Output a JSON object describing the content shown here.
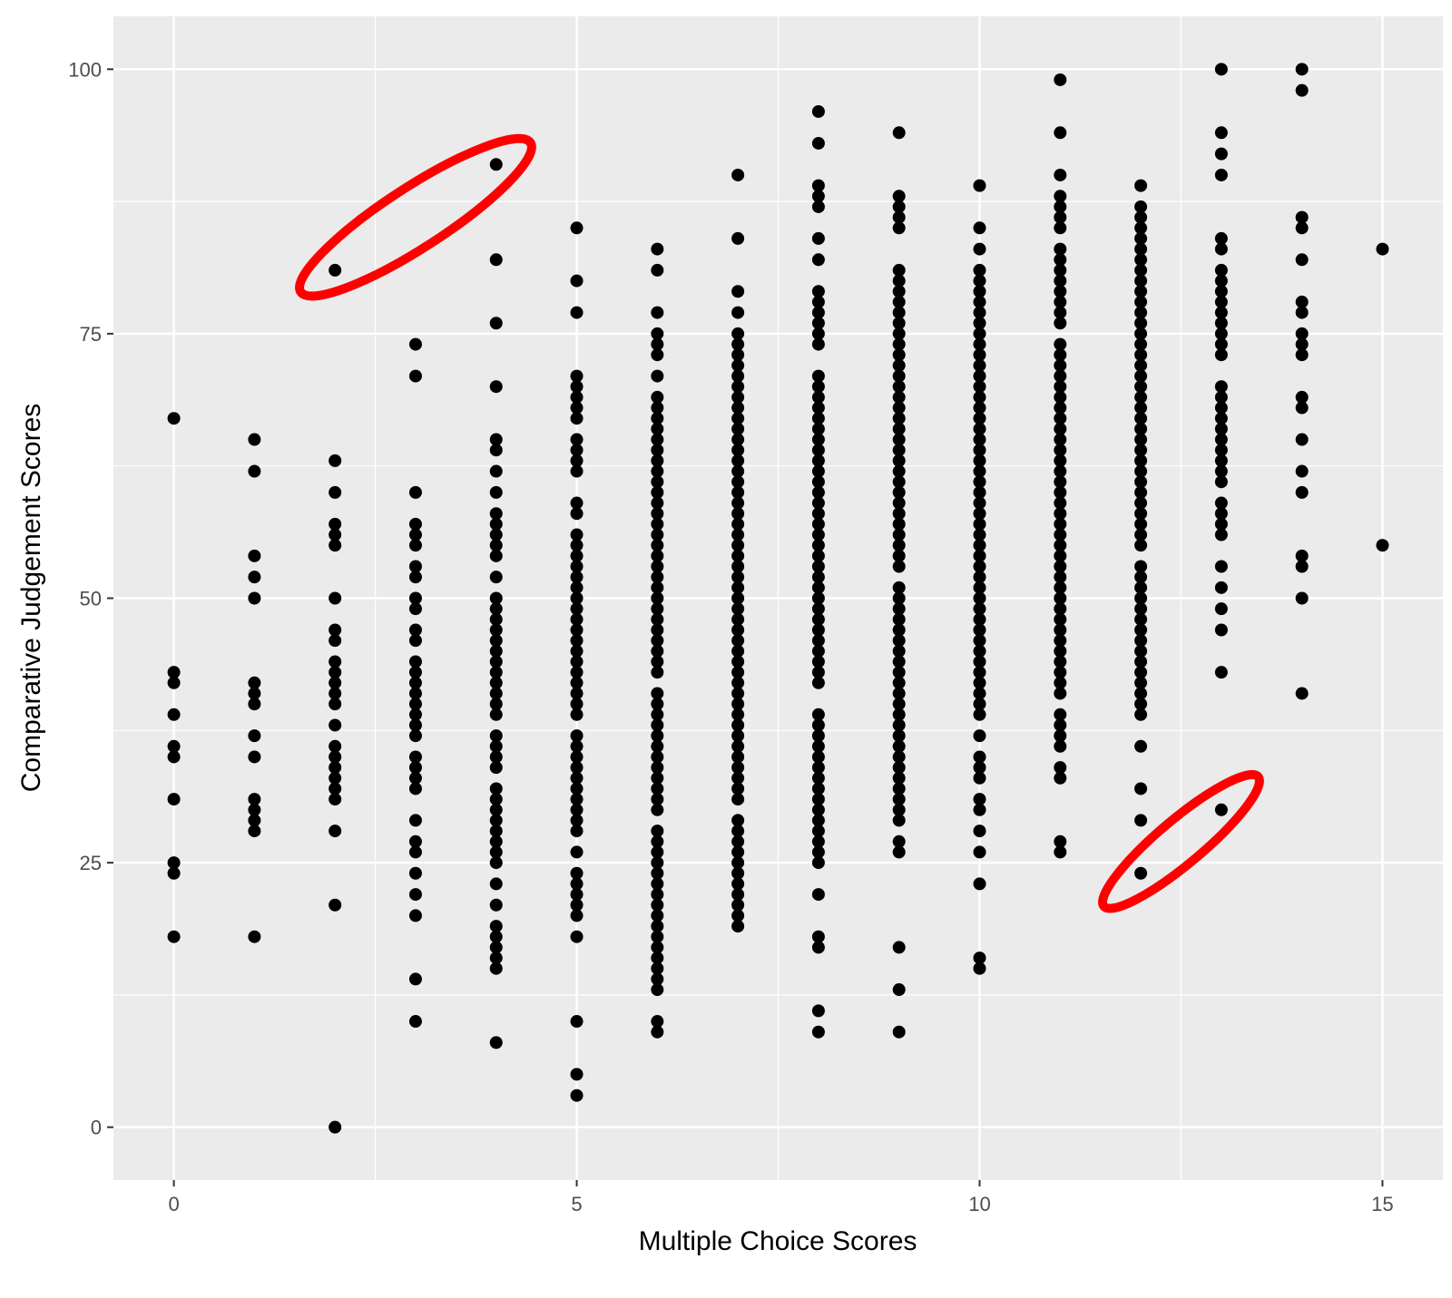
{
  "chart_data": {
    "type": "scatter",
    "title": "",
    "xlabel": "Multiple Choice Scores",
    "ylabel": "Comparative Judgement Scores",
    "xlim": [
      -0.75,
      15.75
    ],
    "ylim": [
      -5,
      105
    ],
    "x_ticks": [
      0,
      5,
      10,
      15
    ],
    "y_ticks": [
      0,
      25,
      50,
      75,
      100
    ],
    "grid": true,
    "legend": "none",
    "colors": {
      "panel_background": "#ebebeb",
      "grid_major": "#ffffff",
      "point": "#000000",
      "highlight": "#ff0000",
      "tick_label": "#4d4d4d"
    },
    "points_by_x": [
      {
        "x": 0,
        "y": [
          67,
          43,
          42,
          39,
          36,
          35,
          31,
          25,
          24,
          18
        ]
      },
      {
        "x": 1,
        "y": [
          65,
          62,
          54,
          52,
          50,
          42,
          41,
          40,
          37,
          35,
          31,
          30,
          29,
          28,
          18
        ]
      },
      {
        "x": 2,
        "y": [
          81,
          63,
          60,
          57,
          56,
          55,
          50,
          47,
          46,
          44,
          43,
          42,
          41,
          40,
          38,
          36,
          35,
          34,
          33,
          32,
          31,
          28,
          21,
          0
        ]
      },
      {
        "x": 3,
        "y": [
          74,
          71,
          60,
          57,
          56,
          55,
          53,
          52,
          50,
          49,
          47,
          46,
          44,
          43,
          42,
          41,
          40,
          39,
          38,
          37,
          35,
          34,
          33,
          32,
          29,
          27,
          26,
          24,
          22,
          20,
          14,
          10
        ]
      },
      {
        "x": 4,
        "y": [
          91,
          82,
          76,
          70,
          65,
          64,
          62,
          60,
          58,
          57,
          56,
          55,
          54,
          52,
          50,
          49,
          48,
          47,
          46,
          45,
          44,
          43,
          42,
          41,
          40,
          39,
          37,
          36,
          35,
          34,
          32,
          31,
          30,
          29,
          28,
          27,
          26,
          25,
          23,
          21,
          19,
          18,
          17,
          16,
          15,
          8
        ]
      },
      {
        "x": 5,
        "y": [
          85,
          80,
          77,
          71,
          70,
          69,
          68,
          67,
          65,
          64,
          63,
          62,
          59,
          58,
          56,
          55,
          54,
          53,
          52,
          51,
          50,
          49,
          48,
          47,
          46,
          45,
          44,
          43,
          42,
          41,
          40,
          39,
          37,
          36,
          35,
          34,
          33,
          32,
          31,
          30,
          29,
          28,
          26,
          24,
          23,
          22,
          21,
          20,
          18,
          10,
          5,
          3
        ]
      },
      {
        "x": 6,
        "y": [
          83,
          81,
          77,
          75,
          74,
          73,
          71,
          69,
          68,
          67,
          66,
          65,
          64,
          63,
          62,
          61,
          60,
          59,
          58,
          57,
          56,
          55,
          54,
          53,
          52,
          51,
          50,
          49,
          48,
          47,
          46,
          45,
          44,
          43,
          41,
          40,
          39,
          38,
          37,
          36,
          35,
          34,
          33,
          32,
          31,
          30,
          28,
          27,
          26,
          25,
          24,
          23,
          22,
          21,
          20,
          19,
          18,
          17,
          16,
          15,
          14,
          13,
          10,
          9
        ]
      },
      {
        "x": 7,
        "y": [
          90,
          84,
          79,
          77,
          75,
          74,
          73,
          72,
          71,
          70,
          69,
          68,
          67,
          66,
          65,
          64,
          63,
          62,
          61,
          60,
          59,
          58,
          57,
          56,
          55,
          54,
          53,
          52,
          51,
          50,
          49,
          48,
          47,
          46,
          45,
          44,
          43,
          42,
          41,
          40,
          39,
          38,
          37,
          36,
          35,
          34,
          33,
          32,
          31,
          29,
          28,
          27,
          26,
          25,
          24,
          23,
          22,
          21,
          20,
          19
        ]
      },
      {
        "x": 8,
        "y": [
          96,
          93,
          89,
          88,
          87,
          84,
          82,
          79,
          78,
          77,
          76,
          75,
          74,
          71,
          70,
          69,
          68,
          67,
          66,
          65,
          64,
          63,
          62,
          61,
          60,
          59,
          58,
          57,
          56,
          55,
          54,
          53,
          52,
          51,
          50,
          49,
          48,
          47,
          46,
          45,
          44,
          43,
          42,
          39,
          38,
          37,
          36,
          35,
          34,
          33,
          32,
          31,
          30,
          29,
          28,
          27,
          26,
          25,
          22,
          18,
          17,
          11,
          9
        ]
      },
      {
        "x": 9,
        "y": [
          94,
          88,
          87,
          86,
          85,
          81,
          80,
          79,
          78,
          77,
          76,
          75,
          74,
          73,
          72,
          71,
          70,
          69,
          68,
          67,
          66,
          65,
          64,
          63,
          62,
          61,
          60,
          59,
          58,
          57,
          56,
          55,
          54,
          53,
          51,
          50,
          49,
          48,
          47,
          46,
          45,
          44,
          43,
          42,
          41,
          40,
          39,
          38,
          37,
          36,
          35,
          34,
          33,
          32,
          31,
          30,
          29,
          27,
          26,
          17,
          13,
          9
        ]
      },
      {
        "x": 10,
        "y": [
          89,
          85,
          83,
          81,
          80,
          79,
          78,
          77,
          76,
          75,
          74,
          73,
          72,
          71,
          70,
          69,
          68,
          67,
          66,
          65,
          64,
          63,
          62,
          61,
          60,
          59,
          58,
          57,
          56,
          55,
          54,
          53,
          52,
          51,
          50,
          49,
          48,
          47,
          46,
          45,
          44,
          43,
          42,
          41,
          40,
          39,
          37,
          35,
          34,
          33,
          31,
          30,
          28,
          26,
          23,
          16,
          15
        ]
      },
      {
        "x": 11,
        "y": [
          99,
          94,
          90,
          88,
          87,
          86,
          85,
          83,
          82,
          81,
          80,
          79,
          78,
          77,
          76,
          74,
          73,
          72,
          71,
          70,
          69,
          68,
          67,
          66,
          65,
          64,
          63,
          62,
          61,
          60,
          59,
          58,
          57,
          56,
          55,
          54,
          53,
          52,
          51,
          50,
          49,
          48,
          47,
          46,
          45,
          44,
          43,
          42,
          41,
          39,
          38,
          37,
          36,
          34,
          33,
          27,
          26
        ]
      },
      {
        "x": 12,
        "y": [
          89,
          87,
          86,
          85,
          84,
          83,
          82,
          81,
          80,
          79,
          78,
          77,
          76,
          75,
          74,
          73,
          72,
          71,
          70,
          69,
          68,
          67,
          66,
          65,
          64,
          63,
          62,
          61,
          60,
          59,
          58,
          57,
          56,
          55,
          53,
          52,
          51,
          50,
          49,
          48,
          47,
          46,
          45,
          44,
          43,
          42,
          41,
          40,
          39,
          36,
          32,
          29,
          24
        ]
      },
      {
        "x": 13,
        "y": [
          100,
          94,
          92,
          90,
          84,
          83,
          81,
          80,
          79,
          78,
          77,
          76,
          75,
          74,
          73,
          70,
          69,
          68,
          67,
          66,
          65,
          64,
          63,
          62,
          61,
          59,
          58,
          57,
          56,
          53,
          51,
          49,
          47,
          43,
          30
        ]
      },
      {
        "x": 14,
        "y": [
          100,
          98,
          86,
          85,
          82,
          78,
          77,
          75,
          74,
          73,
          69,
          68,
          65,
          62,
          60,
          54,
          53,
          50,
          41
        ]
      },
      {
        "x": 15,
        "y": [
          83,
          55
        ]
      }
    ],
    "annotations": [
      {
        "type": "ellipse",
        "color": "#ff0000",
        "cx": 3.0,
        "cy": 86.0,
        "rx": 1.7,
        "ry": 3.0,
        "angle_deg": -33
      },
      {
        "type": "ellipse",
        "color": "#ff0000",
        "cx": 12.5,
        "cy": 27.0,
        "rx": 1.25,
        "ry": 2.2,
        "angle_deg": -40
      }
    ]
  }
}
